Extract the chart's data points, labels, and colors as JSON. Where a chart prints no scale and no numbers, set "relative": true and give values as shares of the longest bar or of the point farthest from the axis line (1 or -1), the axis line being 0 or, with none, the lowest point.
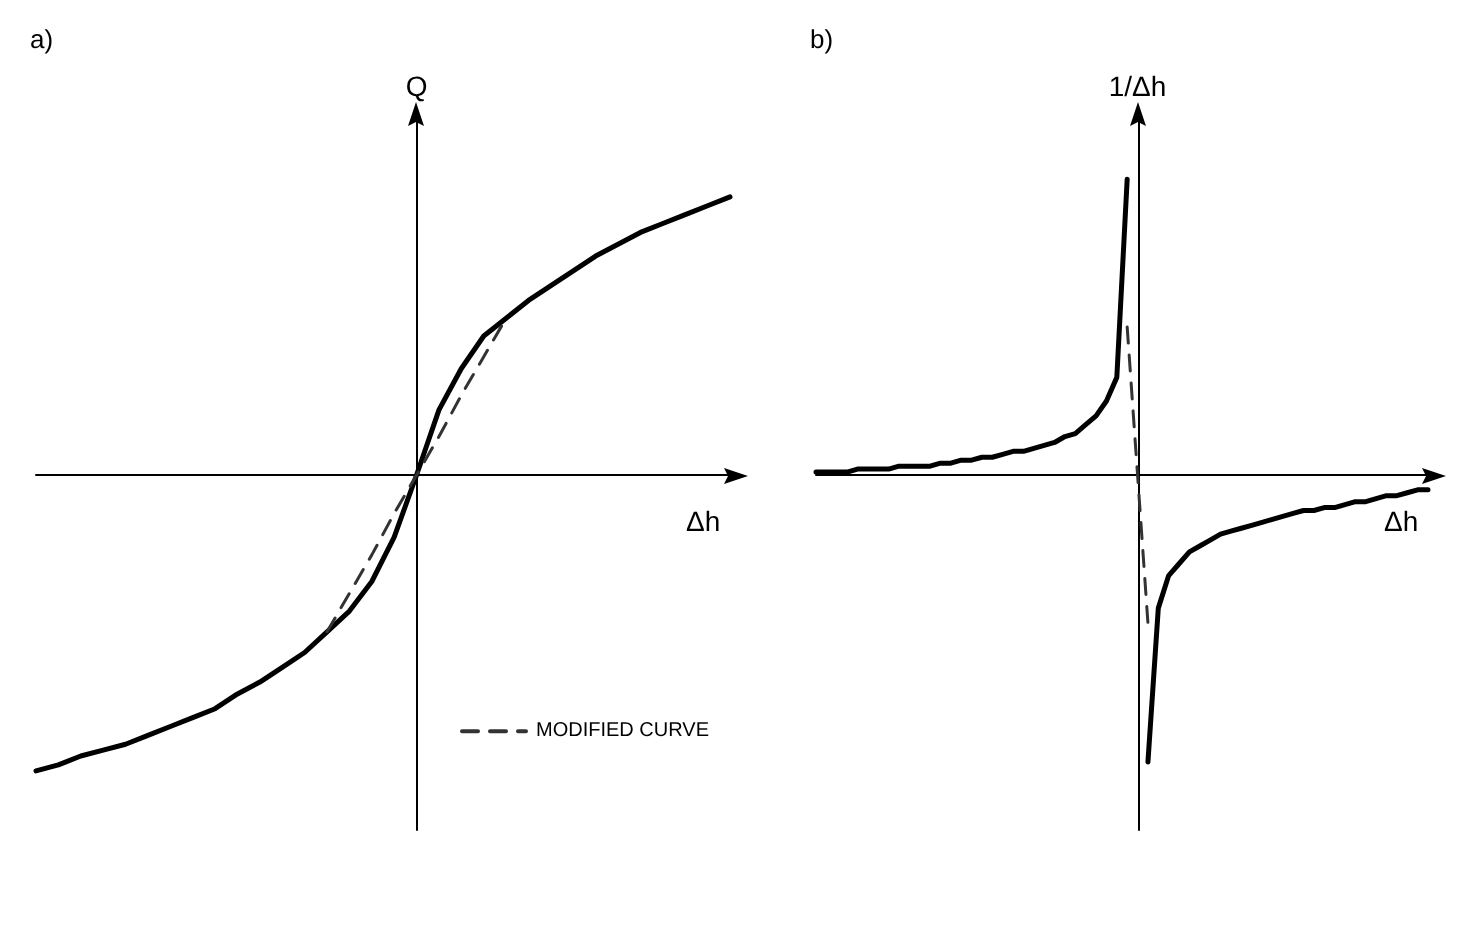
{
  "chart_data": [
    {
      "type": "line",
      "title": "a)",
      "xlabel": "Δh",
      "ylabel": "Q",
      "relative": true,
      "legend": "bottom right",
      "grid": false,
      "marker": "none",
      "categories": [
        null,
        null,
        null,
        null,
        null,
        null,
        null,
        null,
        null,
        null,
        null,
        null,
        null,
        null,
        null,
        null,
        null,
        null,
        null,
        null,
        null,
        null,
        null,
        null,
        null,
        null,
        null,
        null,
        null,
        null,
        null,
        null
      ],
      "series": [
        {
          "color": "#000000",
          "line_style": "solid",
          "values": [
            -1,
            -0.98,
            -0.95,
            -0.93,
            -0.91,
            -0.88,
            -0.85,
            -0.82,
            -0.79,
            -0.74,
            -0.7,
            -0.65,
            -0.6,
            -0.53,
            -0.46,
            -0.36,
            -0.21,
            0,
            0.22,
            0.36,
            0.47,
            0.53,
            0.59,
            0.64,
            0.69,
            0.74,
            0.78,
            0.82,
            0.85,
            0.88,
            0.91,
            0.94
          ]
        },
        {
          "name": "MODIFIED CURVE",
          "color": "#333333",
          "line_style": "dashed",
          "values": [
            null,
            null,
            null,
            null,
            null,
            null,
            null,
            null,
            null,
            null,
            null,
            null,
            null,
            -0.53,
            -0.4,
            -0.27,
            -0.13,
            0,
            0.13,
            0.27,
            0.4,
            0.53,
            null,
            null,
            null,
            null,
            null,
            null,
            null,
            null,
            null,
            null
          ]
        }
      ]
    },
    {
      "type": "line",
      "title": "b)",
      "xlabel": "Δh",
      "ylabel": "1/Δh",
      "relative": true,
      "legend": false,
      "grid": false,
      "marker": "none",
      "categories": [
        null,
        null,
        null,
        null,
        null,
        null,
        null,
        null,
        null,
        null,
        null,
        null,
        null,
        null,
        null,
        null,
        null,
        null,
        null,
        null,
        null,
        null,
        null,
        null,
        null,
        null,
        null,
        null,
        null,
        null,
        null,
        null,
        null,
        null,
        null,
        null,
        null,
        null,
        null,
        null,
        null,
        null,
        null,
        null,
        null,
        null,
        null,
        null,
        null,
        null,
        null,
        null,
        null,
        null,
        null,
        null,
        null,
        null,
        null,
        null
      ],
      "series": [
        {
          "color": "#000000",
          "line_style": "solid",
          "values": [
            0.01,
            0.01,
            0.01,
            0.01,
            0.02,
            0.02,
            0.02,
            0.02,
            0.03,
            0.03,
            0.03,
            0.03,
            0.04,
            0.04,
            0.05,
            0.05,
            0.06,
            0.06,
            0.07,
            0.08,
            0.08,
            0.09,
            0.1,
            0.11,
            0.13,
            0.14,
            0.17,
            0.2,
            0.25,
            0.33,
            1,
            null,
            -0.97,
            -0.45,
            -0.34,
            -0.3,
            -0.26,
            -0.24,
            -0.22,
            -0.2,
            -0.19,
            -0.18,
            -0.17,
            -0.16,
            -0.15,
            -0.14,
            -0.13,
            -0.12,
            -0.12,
            -0.11,
            -0.11,
            -0.1,
            -0.09,
            -0.09,
            -0.08,
            -0.07,
            -0.07,
            -0.06,
            -0.05,
            -0.05
          ]
        },
        {
          "color": "#333333",
          "line_style": "dashed",
          "values": [
            null,
            null,
            null,
            null,
            null,
            null,
            null,
            null,
            null,
            null,
            null,
            null,
            null,
            null,
            null,
            null,
            null,
            null,
            null,
            null,
            null,
            null,
            null,
            null,
            null,
            null,
            null,
            null,
            null,
            null,
            0.5,
            0,
            -0.5,
            null,
            null,
            null,
            null,
            null,
            null,
            null,
            null,
            null,
            null,
            null,
            null,
            null,
            null,
            null,
            null,
            null,
            null,
            null,
            null,
            null,
            null,
            null,
            null,
            null,
            null,
            null
          ]
        }
      ]
    }
  ]
}
